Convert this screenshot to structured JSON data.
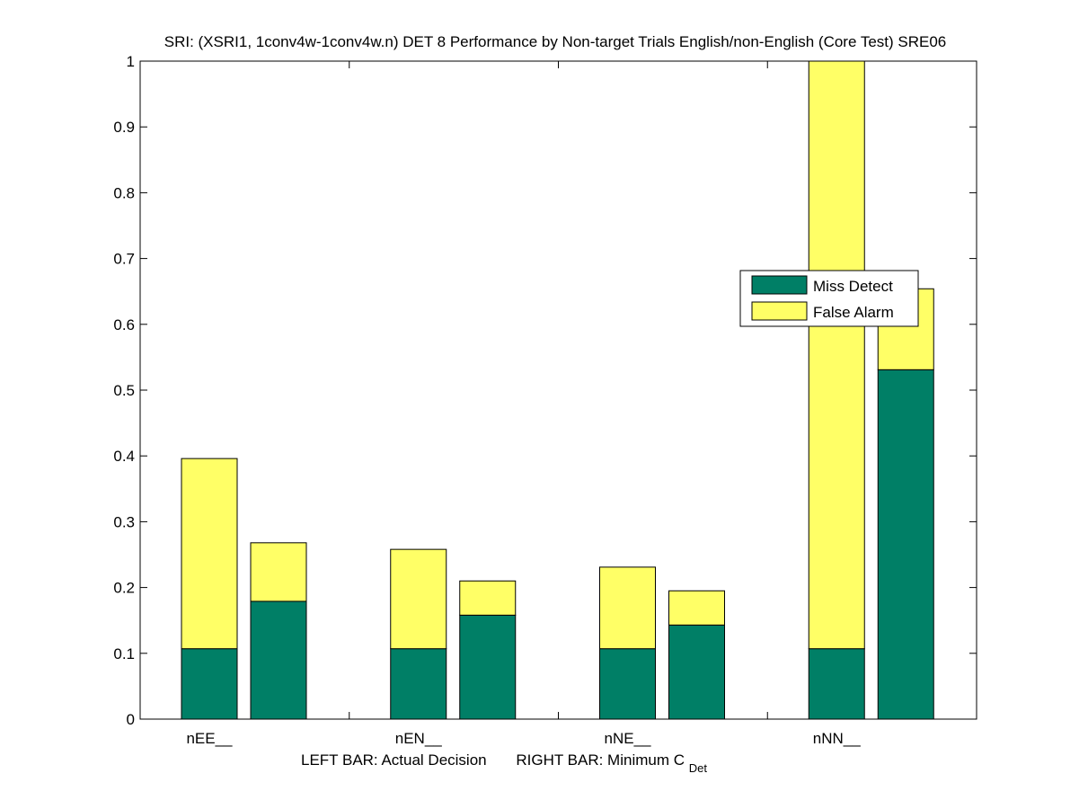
{
  "chart_data": {
    "type": "bar",
    "stacked": true,
    "title": "SRI: (XSRI1, 1conv4w-1conv4w.n) DET 8 Performance by Non-target Trials English/non-English (Core Test) SRE06",
    "xlabel": {
      "left_part": "LEFT BAR: Actual Decision",
      "right_part": "RIGHT BAR: Minimum C",
      "subscript": "Det"
    },
    "ylabel": "",
    "ylim": [
      0,
      1
    ],
    "yticks": [
      "0",
      "0.1",
      "0.2",
      "0.3",
      "0.4",
      "0.5",
      "0.6",
      "0.7",
      "0.8",
      "0.9",
      "1"
    ],
    "categories": [
      "nEE__",
      "nEN__",
      "nNE__",
      "nNN__"
    ],
    "bar_roles": [
      "Actual Decision",
      "Minimum CDet"
    ],
    "series": [
      {
        "name": "Miss Detect",
        "color": "#007f66",
        "actual": [
          0.107,
          0.107,
          0.107,
          0.107
        ],
        "minimum": [
          0.179,
          0.158,
          0.143,
          0.531
        ]
      },
      {
        "name": "False Alarm",
        "color": "#ffff66",
        "actual": [
          0.289,
          0.151,
          0.124,
          0.893
        ],
        "minimum": [
          0.089,
          0.052,
          0.052,
          0.123
        ]
      }
    ],
    "totals": {
      "actual": [
        0.396,
        0.258,
        0.231,
        1.0
      ],
      "minimum": [
        0.268,
        0.21,
        0.195,
        0.654
      ]
    },
    "legend": {
      "placement": "right-middle",
      "entries": [
        "Miss Detect",
        "False Alarm"
      ]
    },
    "grid": false
  }
}
